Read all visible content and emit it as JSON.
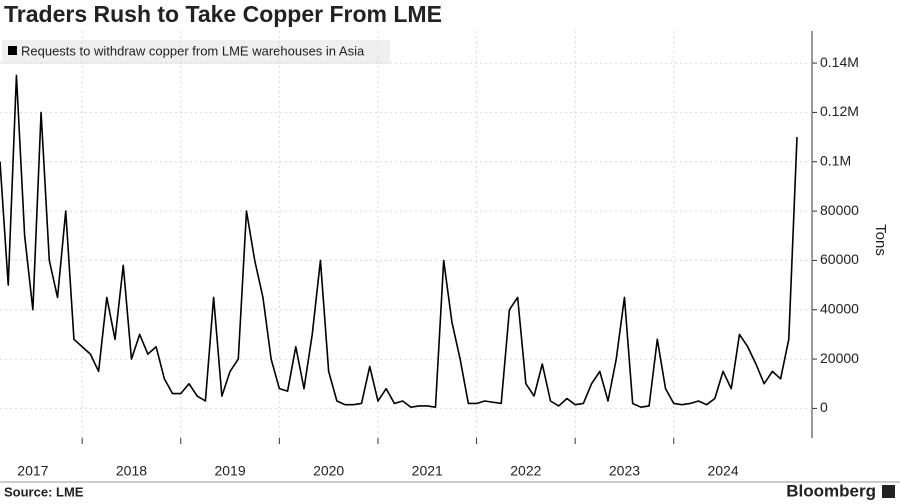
{
  "chart_data": {
    "type": "line",
    "title": "Traders Rush to Take Copper From LME",
    "y_label": "Tons",
    "source": "Source: LME",
    "brand": "Bloomberg",
    "categories": [
      null,
      null,
      null,
      null,
      "2017",
      null,
      null,
      null,
      null,
      null,
      null,
      null,
      null,
      null,
      null,
      null,
      "2018",
      null,
      null,
      null,
      null,
      null,
      null,
      null,
      null,
      null,
      null,
      null,
      "2019",
      null,
      null,
      null,
      null,
      null,
      null,
      null,
      null,
      null,
      null,
      null,
      "2020",
      null,
      null,
      null,
      null,
      null,
      null,
      null,
      null,
      null,
      null,
      null,
      "2021",
      null,
      null,
      null,
      null,
      null,
      null,
      null,
      null,
      null,
      null,
      null,
      "2022",
      null,
      null,
      null,
      null,
      null,
      null,
      null,
      null,
      null,
      null,
      null,
      "2023",
      null,
      null,
      null,
      null,
      null,
      null,
      null,
      null,
      null,
      null,
      null,
      "2024",
      null,
      null,
      null,
      null,
      null,
      null,
      null,
      null,
      null
    ],
    "series": [
      {
        "name": "Requests to withdraw copper from LME warehouses in Asia",
        "color": "#000000",
        "values": [
          100000,
          50000,
          135000,
          70000,
          40000,
          120000,
          60000,
          45000,
          80000,
          28000,
          25000,
          22000,
          15000,
          45000,
          28000,
          58000,
          20000,
          30000,
          22000,
          25000,
          12000,
          6000,
          6000,
          10000,
          5000,
          3000,
          45000,
          5000,
          15000,
          20000,
          80000,
          60000,
          45000,
          20000,
          8000,
          7000,
          25000,
          8000,
          30000,
          60000,
          15000,
          3000,
          1500,
          1500,
          2000,
          17000,
          3000,
          8000,
          2000,
          3000,
          500,
          1000,
          1000,
          500,
          60000,
          35000,
          20000,
          2000,
          2000,
          3000,
          2500,
          2000,
          40000,
          45000,
          10000,
          5000,
          18000,
          3000,
          1000,
          4000,
          1500,
          2000,
          10000,
          15000,
          3000,
          20000,
          45000,
          2000,
          500,
          1000,
          28000,
          8000,
          2000,
          1500,
          2000,
          3000,
          1500,
          4000,
          15000,
          8000,
          30000,
          25000,
          18000,
          10000,
          15000,
          12000,
          28000,
          110000
        ]
      }
    ],
    "ylim": [
      -12000,
      153000
    ],
    "yticks": [
      0,
      20000,
      40000,
      60000,
      80000,
      {
        "value": 100000,
        "label": "0.1M"
      },
      {
        "value": 120000,
        "label": "0.12M"
      },
      {
        "value": 140000,
        "label": "0.14M"
      }
    ],
    "grid": true
  }
}
